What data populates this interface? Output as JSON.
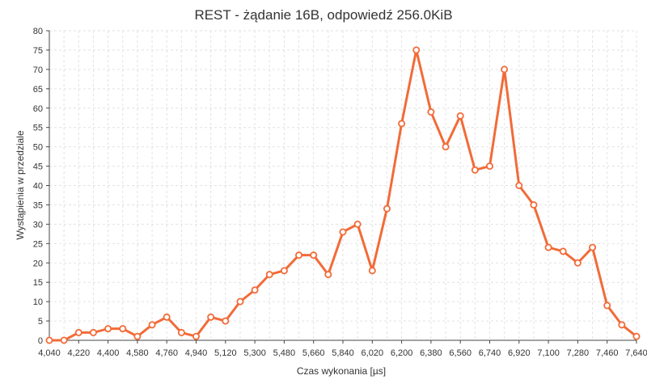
{
  "chart_data": {
    "type": "line",
    "title": "REST - żądanie 16B, odpowiedź 256.0KiB",
    "xlabel": "Czas wykonania [µs]",
    "ylabel": "Wystąpienia w przedziale",
    "xlim": [
      4040,
      7640
    ],
    "ylim": [
      0,
      80
    ],
    "x_ticks": [
      4040,
      4220,
      4400,
      4580,
      4760,
      4940,
      5120,
      5300,
      5480,
      5660,
      5840,
      6020,
      6200,
      6380,
      6560,
      6740,
      6920,
      7100,
      7280,
      7460,
      7640
    ],
    "x_tick_labels": [
      "4,040",
      "4,220",
      "4,400",
      "4,580",
      "4,760",
      "4,940",
      "5,120",
      "5,300",
      "5,480",
      "5,660",
      "5,840",
      "6,020",
      "6,200",
      "6,380",
      "6,560",
      "6,740",
      "6,920",
      "7,100",
      "7,280",
      "7,460",
      "7,640"
    ],
    "y_ticks": [
      0,
      5,
      10,
      15,
      20,
      25,
      30,
      35,
      40,
      45,
      50,
      55,
      60,
      65,
      70,
      75,
      80
    ],
    "y_tick_labels": [
      "0",
      "5",
      "10",
      "15",
      "20",
      "25",
      "30",
      "35",
      "40",
      "45",
      "50",
      "55",
      "60",
      "65",
      "70",
      "75",
      "80"
    ],
    "grid": true,
    "legend": "none",
    "series": [
      {
        "color": "#f26b38",
        "x": [
          4040,
          4130,
          4220,
          4310,
          4400,
          4490,
          4580,
          4670,
          4760,
          4850,
          4940,
          5030,
          5120,
          5210,
          5300,
          5390,
          5480,
          5570,
          5660,
          5750,
          5840,
          5930,
          6020,
          6110,
          6200,
          6290,
          6380,
          6470,
          6560,
          6650,
          6740,
          6830,
          6920,
          7010,
          7100,
          7190,
          7280,
          7370,
          7460,
          7550,
          7640
        ],
        "y": [
          0,
          0,
          2,
          2,
          3,
          3,
          1,
          4,
          6,
          2,
          1,
          6,
          5,
          10,
          13,
          17,
          18,
          22,
          22,
          17,
          28,
          30,
          18,
          34,
          56,
          75,
          59,
          50,
          58,
          44,
          45,
          70,
          40,
          35,
          24,
          23,
          20,
          24,
          9,
          4,
          1
        ]
      }
    ]
  }
}
